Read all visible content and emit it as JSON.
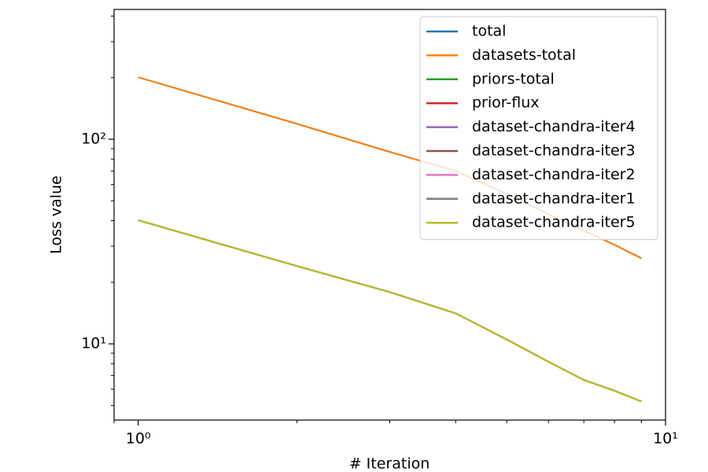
{
  "chart_data": {
    "type": "line",
    "xlabel": "# Iteration",
    "ylabel": "Loss value",
    "xscale": "log",
    "yscale": "log",
    "x": [
      1,
      2,
      3,
      4,
      5,
      6,
      7,
      8,
      9
    ],
    "series": [
      {
        "name": "total",
        "color": "#1f77b4",
        "values": [
          201,
          119,
          86.7,
          70,
          54,
          43,
          35.8,
          30.5,
          26.2
        ]
      },
      {
        "name": "datasets-total",
        "color": "#ff7f0e",
        "values": [
          201,
          119,
          86.7,
          70,
          54,
          43,
          35.8,
          30.5,
          26.2
        ]
      },
      {
        "name": "priors-total",
        "color": "#2ca02c",
        "values": [
          40.2,
          24,
          17.9,
          14.1,
          10.5,
          8.17,
          6.66,
          5.9,
          5.23
        ]
      },
      {
        "name": "prior-flux",
        "color": "#d62728",
        "values": [
          40.2,
          24,
          17.9,
          14.1,
          10.5,
          8.17,
          6.66,
          5.9,
          5.23
        ]
      },
      {
        "name": "dataset-chandra-iter4",
        "color": "#9467bd",
        "values": [
          40.2,
          24,
          17.9,
          14.1,
          10.5,
          8.17,
          6.66,
          5.9,
          5.23
        ]
      },
      {
        "name": "dataset-chandra-iter3",
        "color": "#8c564b",
        "values": [
          40.2,
          24,
          17.9,
          14.1,
          10.5,
          8.17,
          6.66,
          5.9,
          5.23
        ]
      },
      {
        "name": "dataset-chandra-iter2",
        "color": "#e377c2",
        "values": [
          40.2,
          24,
          17.9,
          14.1,
          10.5,
          8.17,
          6.66,
          5.9,
          5.23
        ]
      },
      {
        "name": "dataset-chandra-iter1",
        "color": "#7f7f7f",
        "values": [
          40.2,
          24,
          17.9,
          14.1,
          10.5,
          8.17,
          6.66,
          5.9,
          5.23
        ]
      },
      {
        "name": "dataset-chandra-iter5",
        "color": "#bcbd22",
        "values": [
          40.2,
          24,
          17.9,
          14.1,
          10.5,
          8.17,
          6.66,
          5.9,
          5.23
        ]
      }
    ],
    "xlim": [
      0.9,
      10
    ],
    "ylim": [
      4.24,
      431
    ],
    "xticks": [
      {
        "value": 1,
        "label": "10⁰"
      },
      {
        "value": 10,
        "label": "10¹"
      }
    ],
    "xminorticks": [
      0.9,
      2,
      3,
      4,
      5,
      6,
      7,
      8,
      9
    ],
    "yticks": [
      {
        "value": 10,
        "label": "10¹"
      },
      {
        "value": 100,
        "label": "10²"
      }
    ],
    "yminorticks": [
      5,
      6,
      7,
      8,
      9,
      20,
      30,
      40,
      50,
      60,
      70,
      80,
      90,
      200,
      300,
      400
    ],
    "legend": "upper right"
  }
}
